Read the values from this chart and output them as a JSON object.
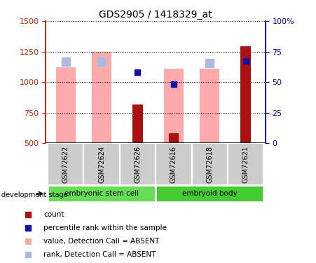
{
  "title": "GDS2905 / 1418329_at",
  "samples": [
    "GSM72622",
    "GSM72624",
    "GSM72626",
    "GSM72616",
    "GSM72618",
    "GSM72621"
  ],
  "ylim_left": [
    500,
    1500
  ],
  "ylim_right": [
    0,
    100
  ],
  "yticks_left": [
    500,
    750,
    1000,
    1250,
    1500
  ],
  "yticks_right": [
    0,
    25,
    50,
    75,
    100
  ],
  "ytick_labels_right": [
    "0",
    "25",
    "50",
    "75",
    "100%"
  ],
  "pink_bar_tops": [
    1120,
    1250,
    null,
    1110,
    1110,
    null
  ],
  "pink_bar_base": 500,
  "lightblue_sq_y": [
    1165,
    1170,
    null,
    null,
    1155,
    null
  ],
  "darkred_bar_tops": [
    null,
    null,
    820,
    580,
    null,
    1295
  ],
  "darkred_bar_base": 500,
  "blue_sq_y": [
    null,
    null,
    1080,
    985,
    null,
    1175
  ],
  "group_info": [
    {
      "label": "embryonic stem cell",
      "start": 0,
      "end": 2,
      "color": "#66DD55"
    },
    {
      "label": "embryoid body",
      "start": 3,
      "end": 5,
      "color": "#44CC33"
    }
  ],
  "pink_color": "#FFAAAA",
  "lightblue_color": "#AABBDD",
  "darkred_color": "#AA1111",
  "blue_color": "#1111AA",
  "left_axis_color": "#CC2200",
  "right_axis_color": "#0000BB",
  "background_labels": "#CCCCCC",
  "legend_items": [
    {
      "color": "#AA1111",
      "label": "count"
    },
    {
      "color": "#1111AA",
      "label": "percentile rank within the sample"
    },
    {
      "color": "#FFAAAA",
      "label": "value, Detection Call = ABSENT"
    },
    {
      "color": "#AABBDD",
      "label": "rank, Detection Call = ABSENT"
    }
  ]
}
